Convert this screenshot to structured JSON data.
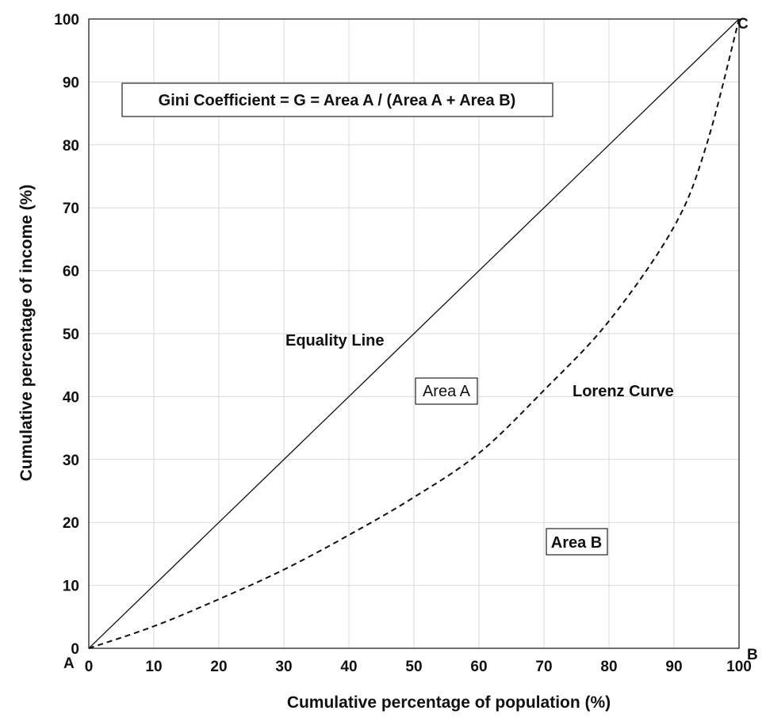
{
  "chart_data": {
    "type": "line",
    "xlabel": "Cumulative percentage of population (%)",
    "ylabel": "Cumulative percentage of income (%)",
    "xlim": [
      0,
      100
    ],
    "ylim": [
      0,
      100
    ],
    "xticks": [
      "0",
      "10",
      "20",
      "30",
      "40",
      "50",
      "60",
      "70",
      "80",
      "90",
      "100"
    ],
    "yticks": [
      "0",
      "10",
      "20",
      "30",
      "40",
      "50",
      "60",
      "70",
      "80",
      "90",
      "100"
    ],
    "grid": true,
    "series": [
      {
        "label": "Equality Line",
        "style": "solid",
        "x": [
          0,
          100
        ],
        "y": [
          0,
          100
        ]
      },
      {
        "label": "Lorenz Curve",
        "style": "dashed",
        "x": [
          0,
          10,
          20,
          30,
          40,
          50,
          60,
          70,
          80,
          90,
          95,
          100
        ],
        "y": [
          0,
          3.5,
          7.8,
          12.5,
          18,
          24,
          31,
          41,
          52,
          67,
          80,
          100
        ]
      }
    ],
    "annotations": {
      "formula": "Gini Coefficient = G = Area A / (Area A + Area B)",
      "equality_label": "Equality Line",
      "lorenz_label": "Lorenz Curve",
      "area_a": "Area A",
      "area_b": "Area B",
      "corner_a": "A",
      "corner_b": "B",
      "corner_c": "C"
    },
    "colors": {
      "line": "#111111",
      "grid": "#d9d9d9",
      "area_a_text": "#555555"
    }
  }
}
